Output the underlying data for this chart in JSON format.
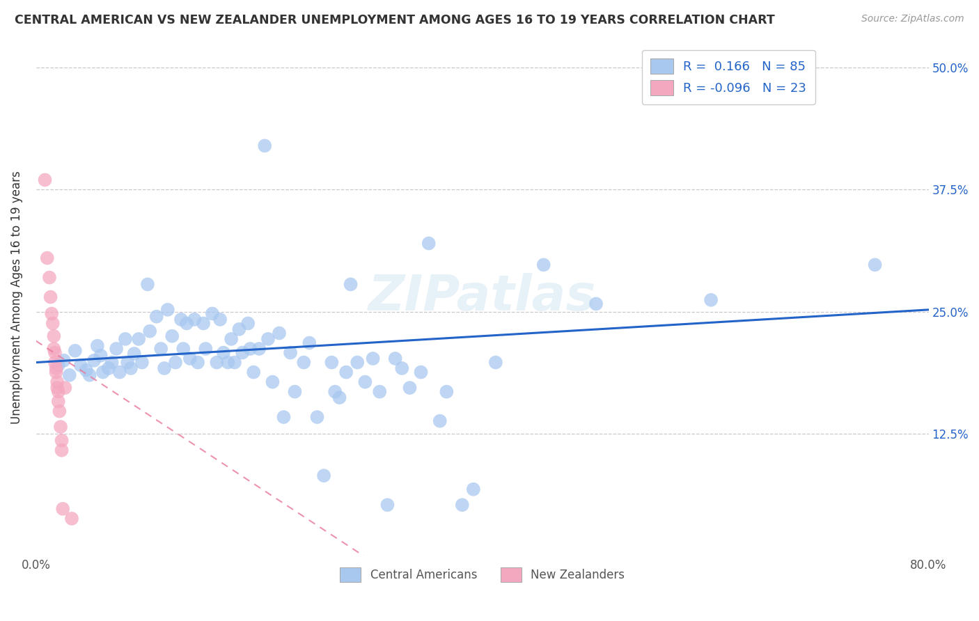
{
  "title": "CENTRAL AMERICAN VS NEW ZEALANDER UNEMPLOYMENT AMONG AGES 16 TO 19 YEARS CORRELATION CHART",
  "source": "Source: ZipAtlas.com",
  "ylabel": "Unemployment Among Ages 16 to 19 years",
  "ytick_labels": [
    "12.5%",
    "25.0%",
    "37.5%",
    "50.0%"
  ],
  "ytick_values": [
    0.125,
    0.25,
    0.375,
    0.5
  ],
  "xlim": [
    0.0,
    0.8
  ],
  "ylim": [
    0.0,
    0.53
  ],
  "blue_color": "#a8c8f0",
  "pink_color": "#f4a8c0",
  "blue_line_color": "#2464c8",
  "pink_line_color": "#e87898",
  "background_color": "#ffffff",
  "grid_color": "#c8c8d0",
  "blue_R": 0.166,
  "pink_R": -0.096,
  "blue_N": 85,
  "pink_N": 23,
  "blue_scatter": [
    [
      0.02,
      0.195
    ],
    [
      0.025,
      0.2
    ],
    [
      0.03,
      0.185
    ],
    [
      0.035,
      0.21
    ],
    [
      0.04,
      0.195
    ],
    [
      0.045,
      0.19
    ],
    [
      0.048,
      0.185
    ],
    [
      0.052,
      0.2
    ],
    [
      0.055,
      0.215
    ],
    [
      0.058,
      0.205
    ],
    [
      0.06,
      0.188
    ],
    [
      0.065,
      0.192
    ],
    [
      0.068,
      0.198
    ],
    [
      0.072,
      0.212
    ],
    [
      0.075,
      0.188
    ],
    [
      0.08,
      0.222
    ],
    [
      0.082,
      0.198
    ],
    [
      0.085,
      0.192
    ],
    [
      0.088,
      0.207
    ],
    [
      0.092,
      0.222
    ],
    [
      0.095,
      0.198
    ],
    [
      0.1,
      0.278
    ],
    [
      0.102,
      0.23
    ],
    [
      0.108,
      0.245
    ],
    [
      0.112,
      0.212
    ],
    [
      0.115,
      0.192
    ],
    [
      0.118,
      0.252
    ],
    [
      0.122,
      0.225
    ],
    [
      0.125,
      0.198
    ],
    [
      0.13,
      0.242
    ],
    [
      0.132,
      0.212
    ],
    [
      0.135,
      0.238
    ],
    [
      0.138,
      0.202
    ],
    [
      0.142,
      0.242
    ],
    [
      0.145,
      0.198
    ],
    [
      0.15,
      0.238
    ],
    [
      0.152,
      0.212
    ],
    [
      0.158,
      0.248
    ],
    [
      0.162,
      0.198
    ],
    [
      0.165,
      0.242
    ],
    [
      0.168,
      0.208
    ],
    [
      0.172,
      0.198
    ],
    [
      0.175,
      0.222
    ],
    [
      0.178,
      0.198
    ],
    [
      0.182,
      0.232
    ],
    [
      0.185,
      0.208
    ],
    [
      0.19,
      0.238
    ],
    [
      0.192,
      0.212
    ],
    [
      0.195,
      0.188
    ],
    [
      0.2,
      0.212
    ],
    [
      0.205,
      0.42
    ],
    [
      0.208,
      0.222
    ],
    [
      0.212,
      0.178
    ],
    [
      0.218,
      0.228
    ],
    [
      0.222,
      0.142
    ],
    [
      0.228,
      0.208
    ],
    [
      0.232,
      0.168
    ],
    [
      0.24,
      0.198
    ],
    [
      0.245,
      0.218
    ],
    [
      0.252,
      0.142
    ],
    [
      0.258,
      0.082
    ],
    [
      0.265,
      0.198
    ],
    [
      0.268,
      0.168
    ],
    [
      0.272,
      0.162
    ],
    [
      0.278,
      0.188
    ],
    [
      0.282,
      0.278
    ],
    [
      0.288,
      0.198
    ],
    [
      0.295,
      0.178
    ],
    [
      0.302,
      0.202
    ],
    [
      0.308,
      0.168
    ],
    [
      0.315,
      0.052
    ],
    [
      0.322,
      0.202
    ],
    [
      0.328,
      0.192
    ],
    [
      0.335,
      0.172
    ],
    [
      0.345,
      0.188
    ],
    [
      0.352,
      0.32
    ],
    [
      0.362,
      0.138
    ],
    [
      0.368,
      0.168
    ],
    [
      0.382,
      0.052
    ],
    [
      0.392,
      0.068
    ],
    [
      0.412,
      0.198
    ],
    [
      0.455,
      0.298
    ],
    [
      0.502,
      0.258
    ],
    [
      0.605,
      0.262
    ],
    [
      0.752,
      0.298
    ]
  ],
  "pink_scatter": [
    [
      0.008,
      0.385
    ],
    [
      0.01,
      0.305
    ],
    [
      0.012,
      0.285
    ],
    [
      0.013,
      0.265
    ],
    [
      0.014,
      0.248
    ],
    [
      0.015,
      0.238
    ],
    [
      0.016,
      0.225
    ],
    [
      0.016,
      0.212
    ],
    [
      0.017,
      0.208
    ],
    [
      0.017,
      0.198
    ],
    [
      0.018,
      0.192
    ],
    [
      0.018,
      0.188
    ],
    [
      0.019,
      0.178
    ],
    [
      0.019,
      0.172
    ],
    [
      0.02,
      0.168
    ],
    [
      0.02,
      0.158
    ],
    [
      0.021,
      0.148
    ],
    [
      0.022,
      0.132
    ],
    [
      0.023,
      0.118
    ],
    [
      0.023,
      0.108
    ],
    [
      0.024,
      0.048
    ],
    [
      0.026,
      0.172
    ],
    [
      0.032,
      0.038
    ]
  ]
}
